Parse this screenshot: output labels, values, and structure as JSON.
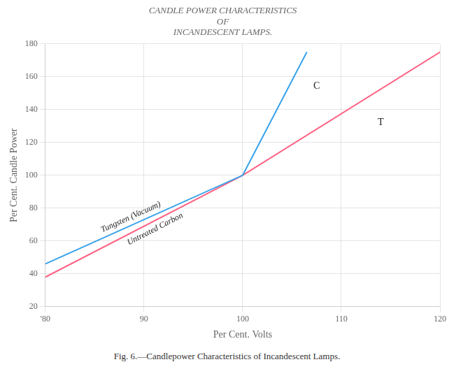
{
  "chart_data": {
    "type": "line",
    "title": "CANDLE POWER CHARACTERISTICS\nOF\nINCANDESCENT LAMPS.",
    "caption": "Fig. 6.—Candlepower Characteristics of Incandescent Lamps.",
    "xlabel": "Per Cent. Volts",
    "ylabel": "Per Cent. Candle Power",
    "series": [
      {
        "name": "Tungsten (Vacuum)",
        "x": [
          80,
          100,
          106.5
        ],
        "values": [
          46,
          100,
          175
        ]
      },
      {
        "name": "Untreated Carbon",
        "x": [
          80,
          100,
          120
        ],
        "values": [
          38,
          100,
          175
        ]
      }
    ],
    "annotations": [
      "C",
      "T"
    ],
    "xlim": [
      80,
      120
    ],
    "xticks": [
      {
        "value": 80,
        "label": "'80"
      },
      90,
      100,
      110,
      120
    ],
    "ylim": [
      20,
      180
    ],
    "yticks": [
      20,
      40,
      60,
      80,
      100,
      120,
      140,
      160,
      180
    ],
    "grid": true
  }
}
